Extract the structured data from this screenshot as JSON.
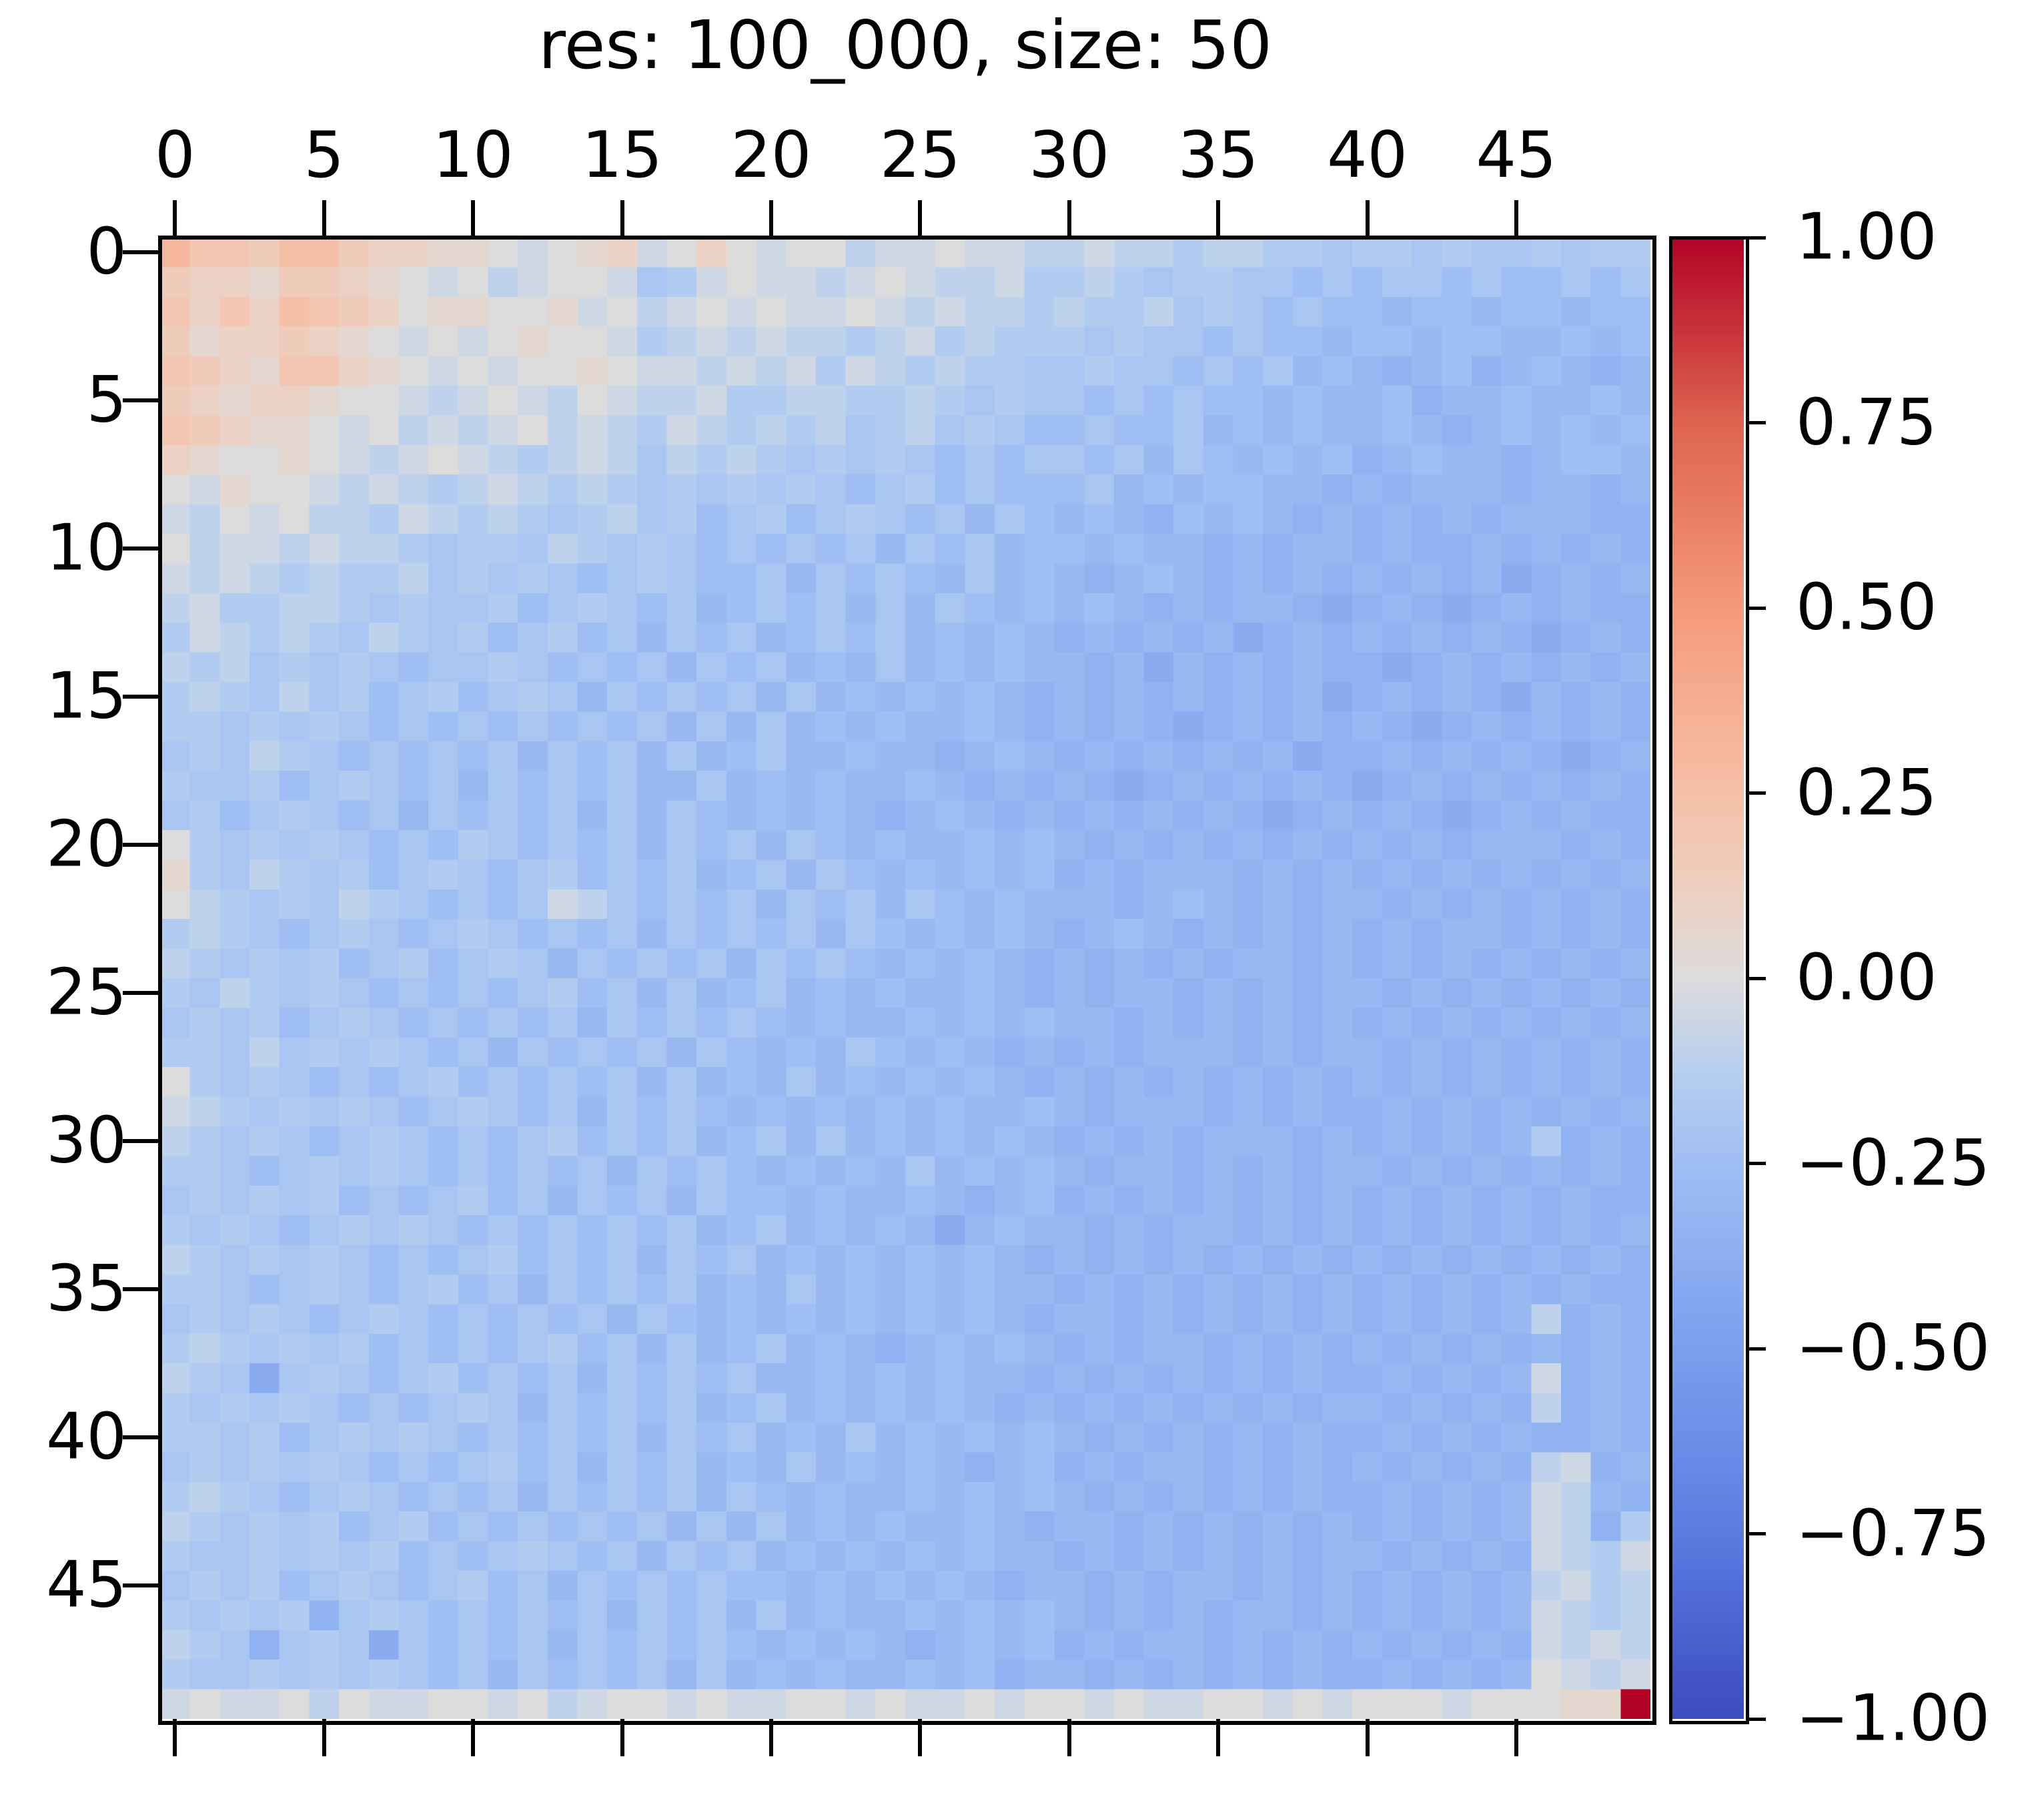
{
  "title": "res: 100_000, size: 50",
  "axes": {
    "x_tick_labels": [
      "0",
      "5",
      "10",
      "15",
      "20",
      "25",
      "30",
      "35",
      "40",
      "45"
    ],
    "y_tick_labels": [
      "0",
      "5",
      "10",
      "15",
      "20",
      "25",
      "30",
      "35",
      "40",
      "45"
    ],
    "tick_step": 5
  },
  "colorbar": {
    "tick_labels": [
      "1.00",
      "0.75",
      "0.50",
      "0.25",
      "0.00",
      "−0.25",
      "−0.50",
      "−0.75",
      "−1.00"
    ],
    "tick_values": [
      1.0,
      0.75,
      0.5,
      0.25,
      0.0,
      -0.25,
      -0.5,
      -0.75,
      -1.0
    ],
    "vmin": -1.0,
    "vmax": 1.0,
    "colormap": "coolwarm"
  },
  "colors": {
    "background": "#ffffff",
    "axis": "#000000",
    "cmap_anchors": [
      [
        0.0,
        59,
        76,
        192
      ],
      [
        0.125,
        92,
        124,
        224
      ],
      [
        0.25,
        124,
        159,
        237
      ],
      [
        0.375,
        159,
        190,
        243
      ],
      [
        0.4375,
        183,
        207,
        240
      ],
      [
        0.5,
        221,
        220,
        220
      ],
      [
        0.5625,
        238,
        207,
        190
      ],
      [
        0.625,
        245,
        192,
        168
      ],
      [
        0.75,
        244,
        154,
        122
      ],
      [
        0.875,
        222,
        100,
        80
      ],
      [
        1.0,
        180,
        4,
        38
      ]
    ]
  },
  "chart_data": {
    "type": "heatmap",
    "title": "res: 100_000, size: 50",
    "rows": 50,
    "cols": 50,
    "vmin": -1.0,
    "vmax": 1.0,
    "x_ticks": [
      0,
      5,
      10,
      15,
      20,
      25,
      30,
      35,
      40,
      45
    ],
    "y_ticks": [
      0,
      5,
      10,
      15,
      20,
      25,
      30,
      35,
      40,
      45
    ],
    "value_bins": {
      "a": -0.45,
      "b": -0.4,
      "c": -0.35,
      "d": -0.3,
      "e": -0.25,
      "f": -0.2,
      "g": -0.15,
      "h": -0.1,
      "i": -0.05,
      "j": 0.0,
      "k": 0.05,
      "l": 0.1,
      "m": 0.15,
      "n": 0.2,
      "o": 0.25,
      "p": 0.3,
      "q": 0.35,
      "Z": 1.0
    },
    "rows_encoded": [
      "pnnmoomllkkjijklijljijjhiijiihhihhghhggfggfgffgfgg",
      "mllkmmlkjijhijjifgijiihijihhigghgfggffefeffefeefef",
      "nlnlonmljkkjjkijhijijiijihihhghgghfgfefeedeedeedee",
      "mkllmlkjijijkjjighihihhghighgggfgffefeedeedeeddede",
      "nmlknnlkjijijjkjiihihigihghggffgffefefdedcdecdedcd",
      "mlkllkjjihijihjihhigghhgghgfgffefefeededdecddedded",
      "nmlkkjijhihijhihgihghghfghfgfeefeefdededdedcdedede",
      "lkjjkjihijihghihfhghgfgfgfefeffefdfededecdeddcdeed",
      "jikjjihihghihghgfgfgfgfefgefeeefdedeeddcdcdddcddcd",
      "ihjijhhgihghgfghfgefgefgfefdfededcededcdcdcdcdddcc",
      "jhiihihhgfggfhgfgfefefefdfefdeededdcdcddcdccdcdcdc",
      "ihihghgghfgfgfefgfeefdfefedfdedcdedcdcdcdcdcdbcdcd",
      "higghhgfgffgefgfefdefefdfdfedededcdcddcbcdcbcdcdcc",
      "gihghgfhgfgefgefdfefdefefdededcdcdcdbcdcdcdcdcbcdc",
      "hghfgfgfeffgfefefdfefdedfdededdcdbdcdcdccbcdcdcdcd",
      "ghgfhfgefgefgfdfefefdfdedededcdcdcdcdcdbcdcdcbdcdc",
      "ggfgfgfefefefefefdfdfdededdedcdcdcbcdcdcdcbcdcdcdc",
      "fgfhgfefefefdfefdfdefddeddcdedcdcdcdcdbccdcdcdcbcd",
      "gffgefgfefdfefefddfdededdedcdcdcbcdcdcdcbcdcdcdcdc",
      "fgefgfefdfefefdfdfedededcdedcdcdcdcdcbcdcdcbcdcdcc",
      "jgfgfgfefegfefefdfefdfededdededcdcdcdcdcdcdcdddcdc",
      "kgfhgfgefgfefgefefdefdfedededecdcdddcdcdcdcdcdcdcd",
      "jhgfgfhgfefefihfefefdfefdfededddcdedcdcddcdcdcdcdc",
      "ghgfefgfefgfefefdfefefdfedededcdedcdcdcdcdcddcdcdc",
      "hgfgfgefgefgfdfefefdfefedededcdcdcdcddcdcdcdcdcdcd",
      "gfhgfgfefefefgefdfdefdededdedcdcddcdcdcddcdcdcdcdc",
      "fgfgefgfefefefdfefefededdedededdcdcdcdcdcdcdcdcdcd",
      "ggfhfgfgfefdfefefdfededfededcdcdcdddcdcddcdcdcdcdc",
      "jgfgfefefgefefefdfdedfdedededcdcdcdcdcdcdcdcdcdcdc",
      "ihgfgfgfefgfefdfefedededededdedcdddcdcdccdcdcdcdcd",
      "hgfgfefgfefefgefefdefdfdedededcdcdcdddcdcdcdcdgcdc",
      "ggfefgfgfefefefdfefedededfdededcddcdcdcddcdcdcdcdc",
      "fgfgfgefefgefdfefdfeededdedcdecdcdcdcdcdcdcdcdcdcc",
      "gfgfefgfgfefefefefdefdededbdeddcdcddcdcdcdcdcdcdcd",
      "hgfgfgfefefgefefdfefdededededcdcdcdcdcdcdcdcdcdcdc",
      "ggfefgfefgefdfefefdedfdededeDDcdcdcdcdcdcdcdcdcdcc",
      "fgfgfefgfefefefdfededededededcddcdcdcdcdcdcdcdhcdc",
      "ghgfgfgefefefgefdfdefdedcdededcdcddcdcdcdcdcdcdcdc",
      "hgfbfgfefgefefdfefefddedededdcdcdcdcdcdccdcdcdicdc",
      "gfgfgfefefgfdfefefdefdedededcdcdcdcdcdcddcdcdchcdc",
      "ggfgefgfgfefefefdfefdedfdedededcdcdcdcdccdcdcdccdc",
      "fgfgfgfefefgefdfefdedfdededcdecdcddcdcdcdcdcdchicd",
      "ghgfefgfefefdfefefdfededdedededcdcdcdcdccdcdcdihdc",
      "hgfgfgefgefefefefdfdfdededdedcddcdcdcdcdcdcdcdihcg",
      "gffgfgfgefefgfefdfefdededededdcdcdcdcdcddcdcdcihgi",
      "fgfgefgfefgefdfefefeededededcddcdcddcdcdcdcdcdhigh",
      "gfgfgcfgfefefefdfefdfdeddedededcdcdcddcdcdcdcdihgh",
      "hgfcfgfbfefefdfefefedededcdedecdcddcdcdcdcdcdcihih",
      "gffgfgfgfefdfefefdfdededdedecddcdcdcdcdccdcdcdjihi",
      "ijiijhjiijjijhijjijiijjijiijijjijiijjijijjjijjjkkZ"
    ]
  }
}
